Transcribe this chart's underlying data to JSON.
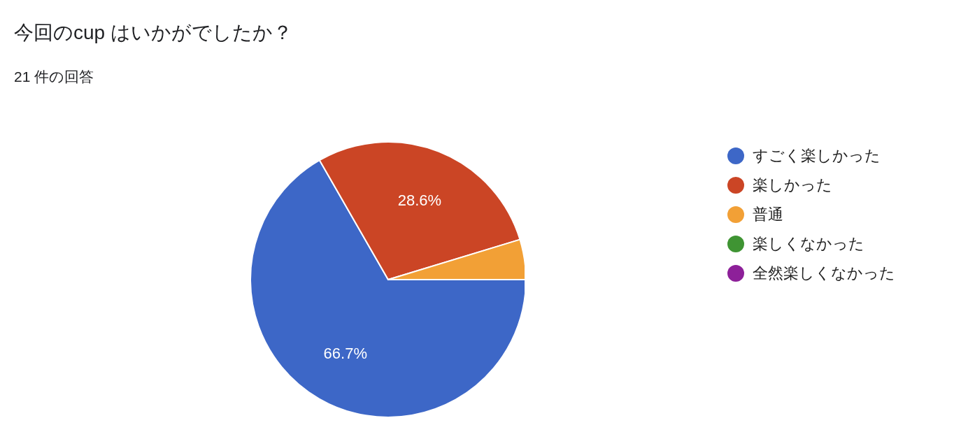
{
  "chart_data": {
    "type": "pie",
    "title": "今回のcup はいかがでしたか？",
    "subtitle": "21 件の回答",
    "categories": [
      "すごく楽しかった",
      "楽しかった",
      "普通",
      "楽しくなかった",
      "全然楽しくなかった"
    ],
    "values": [
      66.7,
      28.6,
      4.7,
      0,
      0
    ],
    "value_labels": [
      "66.7%",
      "28.6%",
      null,
      null,
      null
    ],
    "colors": [
      "#3d67c7",
      "#cb4525",
      "#f2a036",
      "#3f9433",
      "#8d2099"
    ],
    "legend": "right"
  }
}
